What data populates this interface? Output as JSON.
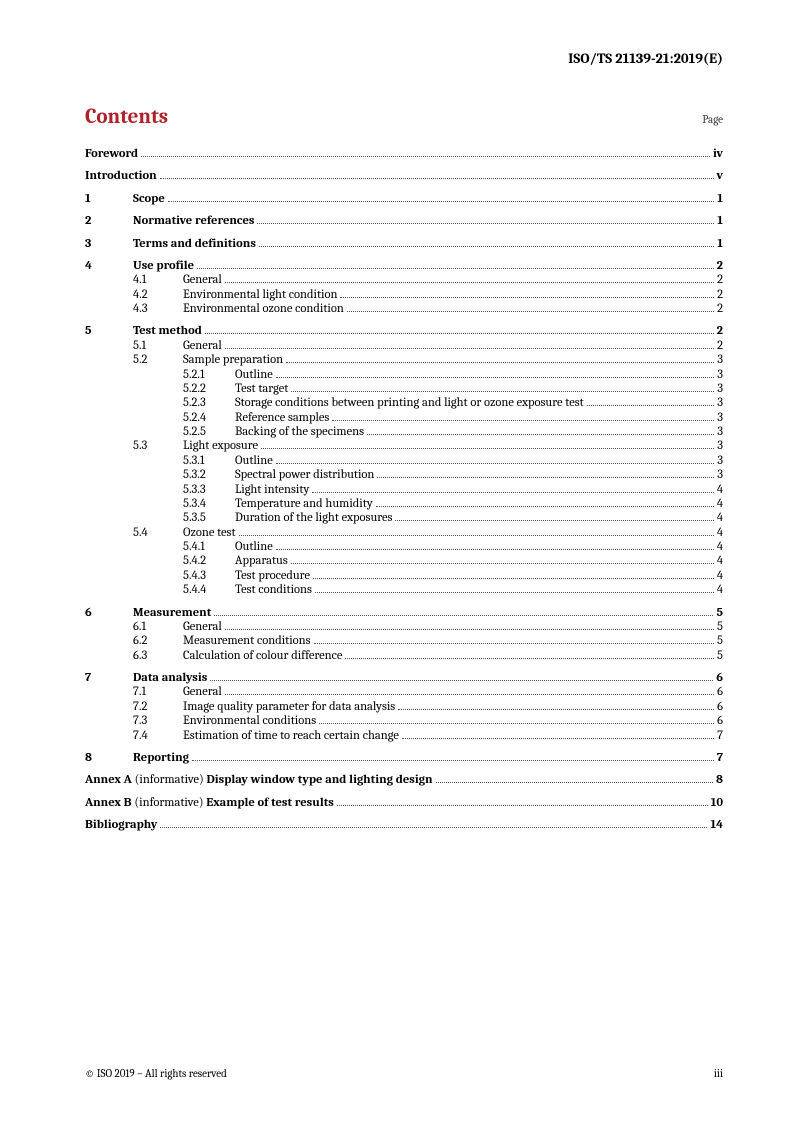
{
  "header": "ISO/TS 21139-21:2019(E)",
  "contentsTitle": "Contents",
  "pageLabel": "Page",
  "footer": {
    "left": "© ISO 2019 – All rights reserved",
    "right": "iii"
  },
  "toc": [
    {
      "type": "block",
      "lines": [
        {
          "level": 0,
          "sec": "",
          "title": "Foreword",
          "page": "iv",
          "bold": true
        }
      ]
    },
    {
      "type": "block",
      "lines": [
        {
          "level": 0,
          "sec": "",
          "title": "Introduction",
          "page": "v",
          "bold": true
        }
      ]
    },
    {
      "type": "block",
      "lines": [
        {
          "level": 0,
          "sec": "1",
          "title": "Scope",
          "page": "1",
          "bold": true
        }
      ]
    },
    {
      "type": "block",
      "lines": [
        {
          "level": 0,
          "sec": "2",
          "title": "Normative references",
          "page": "1",
          "bold": true
        }
      ]
    },
    {
      "type": "block",
      "lines": [
        {
          "level": 0,
          "sec": "3",
          "title": "Terms and definitions",
          "page": "1",
          "bold": true
        }
      ]
    },
    {
      "type": "block",
      "lines": [
        {
          "level": 0,
          "sec": "4",
          "title": "Use profile",
          "page": "2",
          "bold": true
        },
        {
          "level": 1,
          "sec": "4.1",
          "title": "General",
          "page": "2"
        },
        {
          "level": 1,
          "sec": "4.2",
          "title": "Environmental light condition",
          "page": "2"
        },
        {
          "level": 1,
          "sec": "4.3",
          "title": "Environmental ozone condition",
          "page": "2"
        }
      ]
    },
    {
      "type": "block",
      "lines": [
        {
          "level": 0,
          "sec": "5",
          "title": "Test method",
          "page": "2",
          "bold": true
        },
        {
          "level": 1,
          "sec": "5.1",
          "title": "General",
          "page": "2"
        },
        {
          "level": 1,
          "sec": "5.2",
          "title": "Sample preparation",
          "page": "3"
        },
        {
          "level": 2,
          "sec": "5.2.1",
          "title": "Outline",
          "page": "3"
        },
        {
          "level": 2,
          "sec": "5.2.2",
          "title": "Test target",
          "page": "3"
        },
        {
          "level": 2,
          "sec": "5.2.3",
          "title": "Storage conditions between printing and light or ozone exposure test",
          "page": "3"
        },
        {
          "level": 2,
          "sec": "5.2.4",
          "title": "Reference samples",
          "page": "3"
        },
        {
          "level": 2,
          "sec": "5.2.5",
          "title": "Backing of the specimens",
          "page": "3"
        },
        {
          "level": 1,
          "sec": "5.3",
          "title": "Light exposure",
          "page": "3"
        },
        {
          "level": 2,
          "sec": "5.3.1",
          "title": "Outline",
          "page": "3"
        },
        {
          "level": 2,
          "sec": "5.3.2",
          "title": "Spectral power distribution",
          "page": "3"
        },
        {
          "level": 2,
          "sec": "5.3.3",
          "title": "Light intensity",
          "page": "4"
        },
        {
          "level": 2,
          "sec": "5.3.4",
          "title": "Temperature and humidity",
          "page": "4"
        },
        {
          "level": 2,
          "sec": "5.3.5",
          "title": "Duration of the light exposures",
          "page": "4"
        },
        {
          "level": 1,
          "sec": "5.4",
          "title": "Ozone test",
          "page": "4"
        },
        {
          "level": 2,
          "sec": "5.4.1",
          "title": "Outline",
          "page": "4"
        },
        {
          "level": 2,
          "sec": "5.4.2",
          "title": "Apparatus",
          "page": "4"
        },
        {
          "level": 2,
          "sec": "5.4.3",
          "title": "Test procedure",
          "page": "4"
        },
        {
          "level": 2,
          "sec": "5.4.4",
          "title": "Test conditions",
          "page": "4"
        }
      ]
    },
    {
      "type": "block",
      "lines": [
        {
          "level": 0,
          "sec": "6",
          "title": "Measurement",
          "page": "5",
          "bold": true
        },
        {
          "level": 1,
          "sec": "6.1",
          "title": "General",
          "page": "5"
        },
        {
          "level": 1,
          "sec": "6.2",
          "title": "Measurement conditions",
          "page": "5"
        },
        {
          "level": 1,
          "sec": "6.3",
          "title": "Calculation of colour difference",
          "page": "5"
        }
      ]
    },
    {
      "type": "block",
      "lines": [
        {
          "level": 0,
          "sec": "7",
          "title": "Data analysis",
          "page": "6",
          "bold": true
        },
        {
          "level": 1,
          "sec": "7.1",
          "title": "General",
          "page": "6"
        },
        {
          "level": 1,
          "sec": "7.2",
          "title": "Image quality parameter for data analysis",
          "page": "6"
        },
        {
          "level": 1,
          "sec": "7.3",
          "title": "Environmental conditions",
          "page": "6"
        },
        {
          "level": 1,
          "sec": "7.4",
          "title": "Estimation of time to reach certain change",
          "page": "7"
        }
      ]
    },
    {
      "type": "block",
      "lines": [
        {
          "level": 0,
          "sec": "8",
          "title": "Reporting",
          "page": "7",
          "bold": true
        }
      ]
    },
    {
      "type": "block",
      "lines": [
        {
          "level": 0,
          "sec": "",
          "annex": "Annex A",
          "inf": " (informative) ",
          "title": "Display window type and lighting design",
          "page": "8",
          "bold": true
        }
      ]
    },
    {
      "type": "block",
      "lines": [
        {
          "level": 0,
          "sec": "",
          "annex": "Annex B",
          "inf": " (informative) ",
          "title": "Example of test results",
          "page": "10",
          "bold": true
        }
      ]
    },
    {
      "type": "block",
      "lines": [
        {
          "level": 0,
          "sec": "",
          "title": "Bibliography",
          "page": "14",
          "bold": true
        }
      ]
    }
  ]
}
